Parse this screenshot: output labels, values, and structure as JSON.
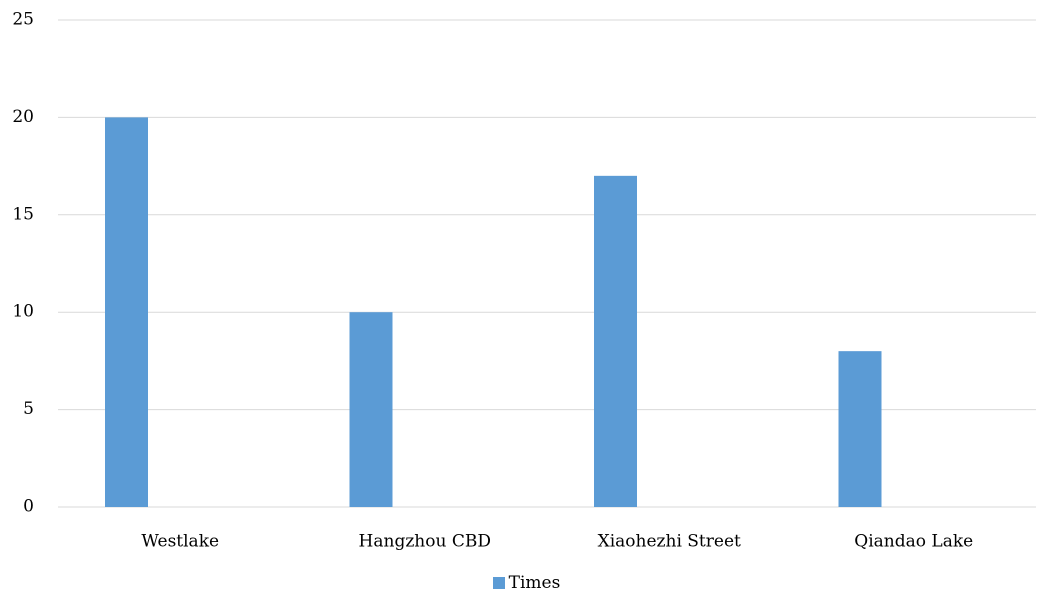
{
  "chart_data": {
    "type": "bar",
    "title": "",
    "xlabel": "",
    "ylabel": "",
    "categories": [
      "Westlake",
      "Hangzhou CBD",
      "Xiaohezhi Street",
      "Qiandao Lake"
    ],
    "series": [
      {
        "name": "Times",
        "values": [
          20,
          10,
          17,
          8
        ],
        "color": "#5b9bd5"
      }
    ],
    "ylim": [
      0,
      25
    ],
    "yticks": [
      0,
      5,
      10,
      15,
      20,
      25
    ],
    "grid": true,
    "legend_position": "bottom"
  },
  "colors": {
    "bar": "#5b9bd5",
    "gridline": "#d9d9d9",
    "text": "#000000"
  }
}
